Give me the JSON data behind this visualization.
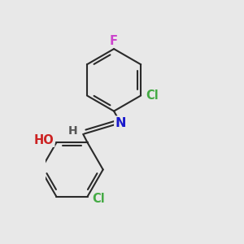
{
  "background_color": "#e8e8e8",
  "bond_color": "#2a2a2a",
  "atom_colors": {
    "F": "#cc44cc",
    "Cl": "#44aa44",
    "N": "#1a1acc",
    "O": "#cc2222",
    "H": "#555555",
    "C": "#2a2a2a"
  },
  "bond_width": 1.5,
  "font_size": 10.5,
  "figsize": [
    3.0,
    3.0
  ],
  "dpi": 100,
  "r": 0.5
}
